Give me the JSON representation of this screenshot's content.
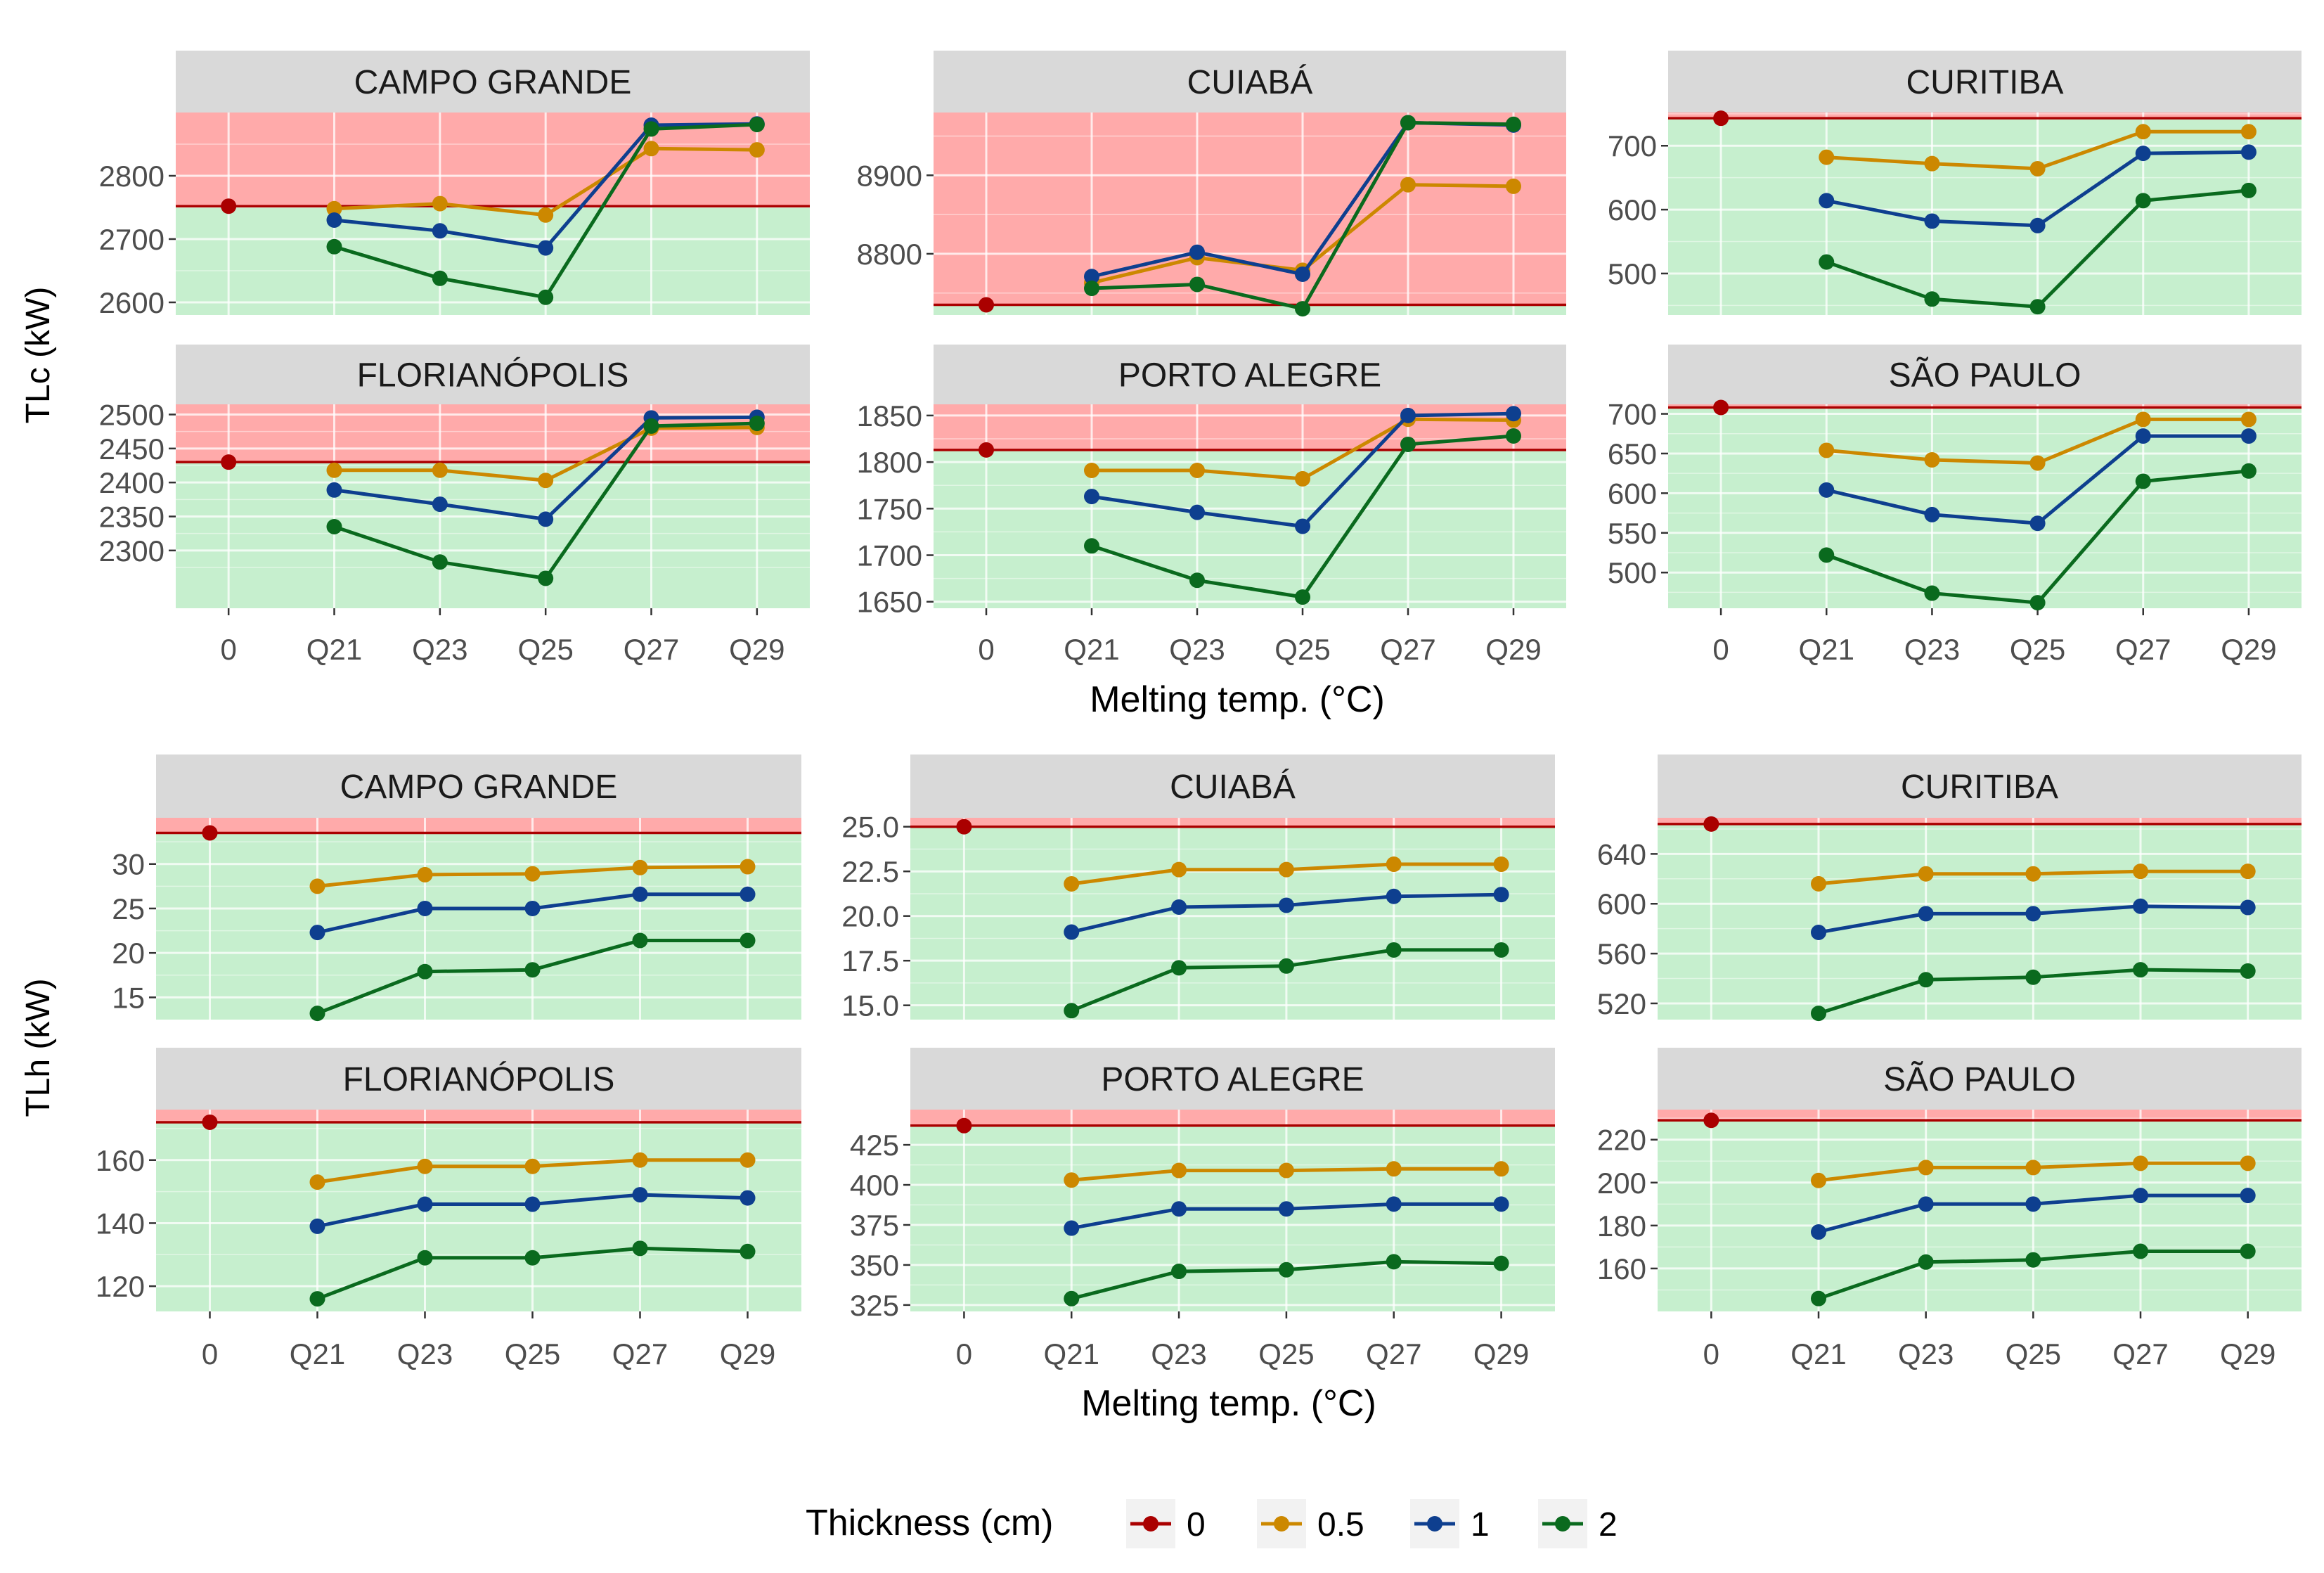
{
  "figure": {
    "x_categories": [
      "0",
      "Q21",
      "Q23",
      "Q25",
      "Q27",
      "Q29"
    ],
    "legend": {
      "title": "Thickness (cm)",
      "items": [
        {
          "label": "0",
          "color": "#AA0000"
        },
        {
          "label": "0.5",
          "color": "#CC8800"
        },
        {
          "label": "1",
          "color": "#0E3F8F"
        },
        {
          "label": "2",
          "color": "#0A6A1E"
        }
      ]
    },
    "colors": {
      "strip_bg": "#D9D9D9",
      "above_baseline": "#FFAAAA",
      "below_baseline": "#C6EFCE",
      "baseline_line": "#AA0000"
    }
  },
  "chart_data": [
    {
      "type": "line",
      "ylabel": "TLc (kW)",
      "xlabel": "Melting temp. (°C)",
      "panels": [
        {
          "city": "CAMPO GRANDE",
          "ylim": [
            2580,
            2900
          ],
          "yticks": [
            2600,
            2700,
            2800
          ],
          "baseline": 2752,
          "series": [
            {
              "name": "0",
              "values": [
                2752,
                null,
                null,
                null,
                null,
                null
              ]
            },
            {
              "name": "0.5",
              "values": [
                null,
                2748,
                2756,
                2738,
                2843,
                2841
              ]
            },
            {
              "name": "1",
              "values": [
                null,
                2730,
                2713,
                2686,
                2880,
                2882
              ]
            },
            {
              "name": "2",
              "values": [
                null,
                2688,
                2638,
                2608,
                2874,
                2881
              ]
            }
          ]
        },
        {
          "city": "CUIABÁ",
          "ylim": [
            8722,
            8980
          ],
          "yticks": [
            8800,
            8900
          ],
          "baseline": 8735,
          "series": [
            {
              "name": "0",
              "values": [
                8735,
                null,
                null,
                null,
                null,
                null
              ]
            },
            {
              "name": "0.5",
              "values": [
                null,
                8763,
                8795,
                8779,
                8888,
                8886
              ]
            },
            {
              "name": "1",
              "values": [
                null,
                8771,
                8802,
                8774,
                8967,
                8964
              ]
            },
            {
              "name": "2",
              "values": [
                null,
                8756,
                8761,
                8730,
                8967,
                8965
              ]
            }
          ]
        },
        {
          "city": "CURITIBA",
          "ylim": [
            435,
            752
          ],
          "yticks": [
            500,
            600,
            700
          ],
          "baseline": 743,
          "series": [
            {
              "name": "0",
              "values": [
                743,
                null,
                null,
                null,
                null,
                null
              ]
            },
            {
              "name": "0.5",
              "values": [
                null,
                682,
                672,
                664,
                722,
                722
              ]
            },
            {
              "name": "1",
              "values": [
                null,
                614,
                582,
                575,
                688,
                690
              ]
            },
            {
              "name": "2",
              "values": [
                null,
                518,
                460,
                448,
                614,
                630
              ]
            }
          ]
        },
        {
          "city": "FLORIANÓPOLIS",
          "ylim": [
            2215,
            2515
          ],
          "yticks": [
            2300,
            2350,
            2400,
            2450,
            2500
          ],
          "baseline": 2430,
          "series": [
            {
              "name": "0",
              "values": [
                2430,
                null,
                null,
                null,
                null,
                null
              ]
            },
            {
              "name": "0.5",
              "values": [
                null,
                2418,
                2418,
                2403,
                2480,
                2481
              ]
            },
            {
              "name": "1",
              "values": [
                null,
                2389,
                2368,
                2346,
                2495,
                2496
              ]
            },
            {
              "name": "2",
              "values": [
                null,
                2335,
                2283,
                2259,
                2483,
                2487
              ]
            }
          ]
        },
        {
          "city": "PORTO ALEGRE",
          "ylim": [
            1643,
            1862
          ],
          "yticks": [
            1650,
            1700,
            1750,
            1800,
            1850
          ],
          "baseline": 1813,
          "series": [
            {
              "name": "0",
              "values": [
                1813,
                null,
                null,
                null,
                null,
                null
              ]
            },
            {
              "name": "0.5",
              "values": [
                null,
                1791,
                1791,
                1782,
                1846,
                1845
              ]
            },
            {
              "name": "1",
              "values": [
                null,
                1763,
                1746,
                1731,
                1850,
                1852
              ]
            },
            {
              "name": "2",
              "values": [
                null,
                1710,
                1673,
                1655,
                1819,
                1828
              ]
            }
          ]
        },
        {
          "city": "SÃO PAULO",
          "ylim": [
            455,
            712
          ],
          "yticks": [
            500,
            550,
            600,
            650,
            700
          ],
          "baseline": 708,
          "series": [
            {
              "name": "0",
              "values": [
                708,
                null,
                null,
                null,
                null,
                null
              ]
            },
            {
              "name": "0.5",
              "values": [
                null,
                654,
                642,
                638,
                693,
                693
              ]
            },
            {
              "name": "1",
              "values": [
                null,
                604,
                573,
                562,
                672,
                672
              ]
            },
            {
              "name": "2",
              "values": [
                null,
                522,
                474,
                462,
                615,
                628
              ]
            }
          ]
        }
      ]
    },
    {
      "type": "line",
      "ylabel": "TLh (kW)",
      "xlabel": "Melting temp. (°C)",
      "panels": [
        {
          "city": "CAMPO GRANDE",
          "ylim": [
            12.5,
            35.2
          ],
          "yticks": [
            15,
            20,
            25,
            30
          ],
          "baseline": 33.5,
          "series": [
            {
              "name": "0",
              "values": [
                33.5,
                null,
                null,
                null,
                null,
                null
              ]
            },
            {
              "name": "0.5",
              "values": [
                null,
                27.5,
                28.8,
                28.9,
                29.6,
                29.7
              ]
            },
            {
              "name": "1",
              "values": [
                null,
                22.3,
                25.0,
                25.0,
                26.6,
                26.6
              ]
            },
            {
              "name": "2",
              "values": [
                null,
                13.2,
                17.9,
                18.1,
                21.4,
                21.4
              ]
            }
          ]
        },
        {
          "city": "CUIABÁ",
          "ylim": [
            14.2,
            25.5
          ],
          "yticks": [
            15.0,
            17.5,
            20.0,
            22.5,
            25.0
          ],
          "baseline": 25.0,
          "series": [
            {
              "name": "0",
              "values": [
                25.0,
                null,
                null,
                null,
                null,
                null
              ]
            },
            {
              "name": "0.5",
              "values": [
                null,
                21.8,
                22.6,
                22.6,
                22.9,
                22.9
              ]
            },
            {
              "name": "1",
              "values": [
                null,
                19.1,
                20.5,
                20.6,
                21.1,
                21.2
              ]
            },
            {
              "name": "2",
              "values": [
                null,
                14.7,
                17.1,
                17.2,
                18.1,
                18.1
              ]
            }
          ]
        },
        {
          "city": "CURITIBA",
          "ylim": [
            507,
            669
          ],
          "yticks": [
            520,
            560,
            600,
            640
          ],
          "baseline": 664,
          "series": [
            {
              "name": "0",
              "values": [
                664,
                null,
                null,
                null,
                null,
                null
              ]
            },
            {
              "name": "0.5",
              "values": [
                null,
                616,
                624,
                624,
                626,
                626
              ]
            },
            {
              "name": "1",
              "values": [
                null,
                577,
                592,
                592,
                598,
                597
              ]
            },
            {
              "name": "2",
              "values": [
                null,
                512,
                539,
                541,
                547,
                546
              ]
            }
          ]
        },
        {
          "city": "FLORIANÓPOLIS",
          "ylim": [
            112,
            176
          ],
          "yticks": [
            120,
            140,
            160
          ],
          "baseline": 172,
          "series": [
            {
              "name": "0",
              "values": [
                172,
                null,
                null,
                null,
                null,
                null
              ]
            },
            {
              "name": "0.5",
              "values": [
                null,
                153,
                158,
                158,
                160,
                160
              ]
            },
            {
              "name": "1",
              "values": [
                null,
                139,
                146,
                146,
                149,
                148
              ]
            },
            {
              "name": "2",
              "values": [
                null,
                116,
                129,
                129,
                132,
                131
              ]
            }
          ]
        },
        {
          "city": "PORTO ALEGRE",
          "ylim": [
            321,
            447
          ],
          "yticks": [
            325,
            350,
            375,
            400,
            425
          ],
          "baseline": 437,
          "series": [
            {
              "name": "0",
              "values": [
                437,
                null,
                null,
                null,
                null,
                null
              ]
            },
            {
              "name": "0.5",
              "values": [
                null,
                403,
                409,
                409,
                410,
                410
              ]
            },
            {
              "name": "1",
              "values": [
                null,
                373,
                385,
                385,
                388,
                388
              ]
            },
            {
              "name": "2",
              "values": [
                null,
                329,
                346,
                347,
                352,
                351
              ]
            }
          ]
        },
        {
          "city": "SÃO PAULO",
          "ylim": [
            140,
            234
          ],
          "yticks": [
            160,
            180,
            200,
            220
          ],
          "baseline": 229,
          "series": [
            {
              "name": "0",
              "values": [
                229,
                null,
                null,
                null,
                null,
                null
              ]
            },
            {
              "name": "0.5",
              "values": [
                null,
                201,
                207,
                207,
                209,
                209
              ]
            },
            {
              "name": "1",
              "values": [
                null,
                177,
                190,
                190,
                194,
                194
              ]
            },
            {
              "name": "2",
              "values": [
                null,
                146,
                163,
                164,
                168,
                168
              ]
            }
          ]
        }
      ]
    }
  ]
}
